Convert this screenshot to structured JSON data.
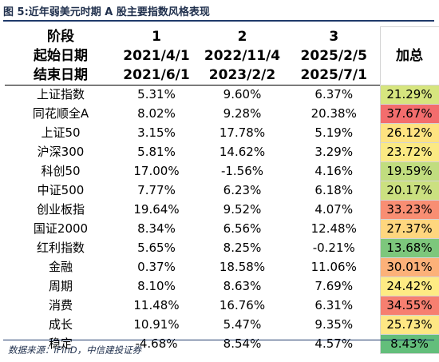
{
  "figure": {
    "title": "图 5:近年弱美元时期 A 股主要指数风格表现",
    "source": "数据来源：iFinD，中信建投证券"
  },
  "table": {
    "header_rows": [
      [
        "阶段",
        "1",
        "2",
        "3"
      ],
      [
        "起始日期",
        "2021/4/1",
        "2022/11/4",
        "2025/2/5"
      ],
      [
        "结束日期",
        "2021/6/1",
        "2023/2/2",
        "2025/7/1"
      ]
    ],
    "total_header": "加总",
    "rows": [
      {
        "name": "上证指数",
        "p1": "5.31%",
        "p2": "9.60%",
        "p3": "6.37%",
        "total": "21.29%",
        "color": "#d6e57f"
      },
      {
        "name": "同花顺全A",
        "p1": "8.02%",
        "p2": "9.28%",
        "p3": "20.38%",
        "total": "37.67%",
        "color": "#f36d6d"
      },
      {
        "name": "上证50",
        "p1": "3.15%",
        "p2": "17.78%",
        "p3": "5.19%",
        "total": "26.12%",
        "color": "#fee381"
      },
      {
        "name": "沪深300",
        "p1": "5.81%",
        "p2": "14.62%",
        "p3": "3.29%",
        "total": "23.72%",
        "color": "#fbe983"
      },
      {
        "name": "科创50",
        "p1": "17.00%",
        "p2": "-1.56%",
        "p3": "4.16%",
        "total": "19.59%",
        "color": "#c1dd7f"
      },
      {
        "name": "中证500",
        "p1": "7.77%",
        "p2": "6.23%",
        "p3": "6.18%",
        "total": "20.17%",
        "color": "#cbe080"
      },
      {
        "name": "创业板指",
        "p1": "19.64%",
        "p2": "9.52%",
        "p3": "4.07%",
        "total": "33.23%",
        "color": "#f88e73"
      },
      {
        "name": "国证2000",
        "p1": "8.34%",
        "p2": "6.56%",
        "p3": "12.48%",
        "total": "27.37%",
        "color": "#fed67e"
      },
      {
        "name": "红利指数",
        "p1": "5.65%",
        "p2": "8.25%",
        "p3": "-0.21%",
        "total": "13.68%",
        "color": "#7dc77c"
      },
      {
        "name": "金融",
        "p1": "0.37%",
        "p2": "18.58%",
        "p3": "11.06%",
        "total": "30.01%",
        "color": "#fcb179"
      },
      {
        "name": "周期",
        "p1": "8.10%",
        "p2": "8.63%",
        "p3": "7.69%",
        "total": "24.42%",
        "color": "#feeb84"
      },
      {
        "name": "消费",
        "p1": "11.48%",
        "p2": "16.76%",
        "p3": "6.31%",
        "total": "34.55%",
        "color": "#f67f70"
      },
      {
        "name": "成长",
        "p1": "10.91%",
        "p2": "5.47%",
        "p3": "9.35%",
        "total": "25.73%",
        "color": "#fee784"
      },
      {
        "name": "稳定",
        "p1": "-4.68%",
        "p2": "8.54%",
        "p3": "4.57%",
        "total": "8.43%",
        "color": "#63be7b"
      }
    ]
  }
}
